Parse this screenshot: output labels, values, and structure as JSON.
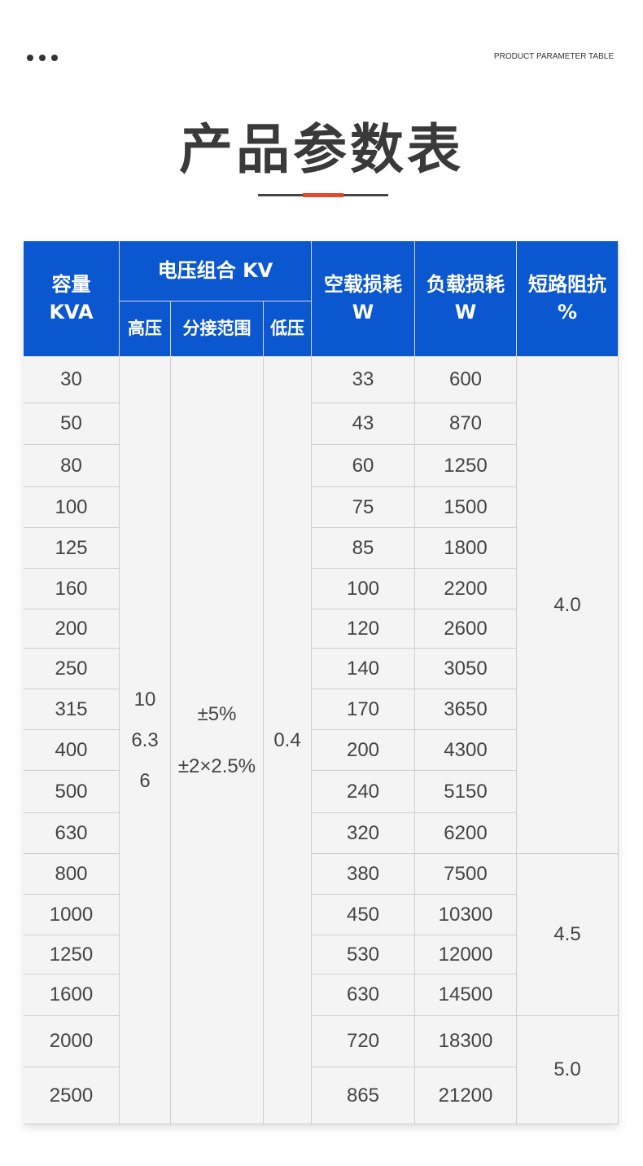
{
  "header": {
    "subtitle": "PRODUCT PARAMETER TABLE",
    "title": "产品参数表",
    "accent_color": "#e8452a"
  },
  "table": {
    "header_color": "#0b57d0",
    "headers": {
      "capacity": [
        "容量",
        "KVA"
      ],
      "voltage_group": "电压组合 KV",
      "high_voltage": "高压",
      "tap_range": "分接范围",
      "low_voltage": "低压",
      "no_load_loss": [
        "空载损耗",
        "W"
      ],
      "load_loss": [
        "负载损耗",
        "W"
      ],
      "impedance": [
        "短路阻抗",
        "%"
      ]
    },
    "high_voltage_values": [
      "10",
      "6.3",
      "6"
    ],
    "tap_range_values": [
      "±5%",
      "±2×2.5%"
    ],
    "low_voltage_value": "0.4",
    "rows": [
      {
        "capacity": "30",
        "no_load": "33",
        "load": "600"
      },
      {
        "capacity": "50",
        "no_load": "43",
        "load": "870"
      },
      {
        "capacity": "80",
        "no_load": "60",
        "load": "1250"
      },
      {
        "capacity": "100",
        "no_load": "75",
        "load": "1500"
      },
      {
        "capacity": "125",
        "no_load": "85",
        "load": "1800"
      },
      {
        "capacity": "160",
        "no_load": "100",
        "load": "2200"
      },
      {
        "capacity": "200",
        "no_load": "120",
        "load": "2600"
      },
      {
        "capacity": "250",
        "no_load": "140",
        "load": "3050"
      },
      {
        "capacity": "315",
        "no_load": "170",
        "load": "3650"
      },
      {
        "capacity": "400",
        "no_load": "200",
        "load": "4300"
      },
      {
        "capacity": "500",
        "no_load": "240",
        "load": "5150"
      },
      {
        "capacity": "630",
        "no_load": "320",
        "load": "6200"
      },
      {
        "capacity": "800",
        "no_load": "380",
        "load": "7500"
      },
      {
        "capacity": "1000",
        "no_load": "450",
        "load": "10300"
      },
      {
        "capacity": "1250",
        "no_load": "530",
        "load": "12000"
      },
      {
        "capacity": "1600",
        "no_load": "630",
        "load": "14500"
      },
      {
        "capacity": "2000",
        "no_load": "720",
        "load": "18300"
      },
      {
        "capacity": "2500",
        "no_load": "865",
        "load": "21200"
      }
    ],
    "impedance_groups": [
      {
        "value": "4.0",
        "row_count": 12
      },
      {
        "value": "4.5",
        "row_count": 4
      },
      {
        "value": "5.0",
        "row_count": 2
      }
    ]
  }
}
